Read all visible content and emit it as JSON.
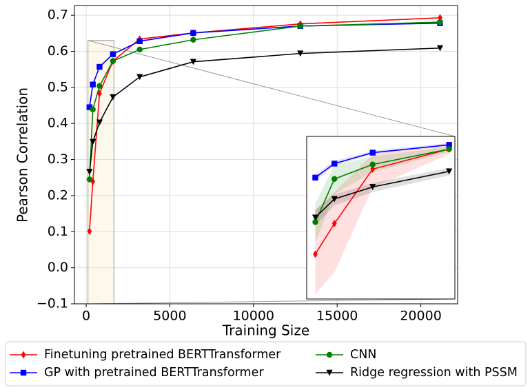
{
  "chart_data": {
    "type": "line",
    "xlabel": "Training Size",
    "ylabel": "Pearson Correlation",
    "x": [
      200,
      400,
      800,
      1600,
      3200,
      6400,
      12800,
      21150
    ],
    "xlim": [
      -700,
      22200
    ],
    "ylim": [
      -0.1,
      0.727
    ],
    "xticks": [
      0,
      5000,
      10000,
      15000,
      20000
    ],
    "yticks": [
      {
        "value": -0.1,
        "label": "−0.1"
      },
      {
        "value": 0,
        "label": "0.0"
      },
      0.1,
      0.2,
      0.3,
      0.4,
      0.5,
      0.6,
      0.7
    ],
    "grid": true,
    "legend": "bottom",
    "series": [
      {
        "name": "Finetuning pretrained BERTTransformer",
        "color": "#ff0000",
        "marker": "diamond",
        "values": [
          0.101,
          0.239,
          0.483,
          0.573,
          0.634,
          0.651,
          0.676,
          0.693
        ]
      },
      {
        "name": "GP with pretrained BERTTransformer",
        "color": "#0000ff",
        "marker": "square",
        "values": [
          0.445,
          0.508,
          0.557,
          0.592,
          0.628,
          0.651,
          0.67,
          0.678
        ]
      },
      {
        "name": "CNN",
        "color": "#008000",
        "marker": "circle",
        "values": [
          0.245,
          0.439,
          0.504,
          0.573,
          0.605,
          0.632,
          0.67,
          0.681
        ]
      },
      {
        "name": "Ridge regression with PSSM",
        "color": "#000000",
        "marker": "triangle-down",
        "values": [
          0.266,
          0.349,
          0.403,
          0.473,
          0.529,
          0.571,
          0.594,
          0.609
        ]
      }
    ],
    "inset": {
      "xlim": [
        110,
        1660
      ],
      "ylim": [
        -0.1,
        0.63
      ],
      "bands": [
        {
          "lower": [
            -0.08,
            0.02,
            0.4,
            0.55
          ],
          "upper": [
            0.3,
            0.38,
            0.55,
            0.6
          ]
        },
        {
          "lower": [
            0.43,
            0.5,
            0.55,
            0.59
          ],
          "upper": [
            0.46,
            0.52,
            0.565,
            0.6
          ]
        },
        {
          "lower": [
            0.15,
            0.37,
            0.47,
            0.56
          ],
          "upper": [
            0.33,
            0.5,
            0.54,
            0.585
          ]
        },
        {
          "lower": [
            0.23,
            0.32,
            0.38,
            0.455
          ],
          "upper": [
            0.3,
            0.37,
            0.42,
            0.49
          ]
        }
      ]
    }
  }
}
